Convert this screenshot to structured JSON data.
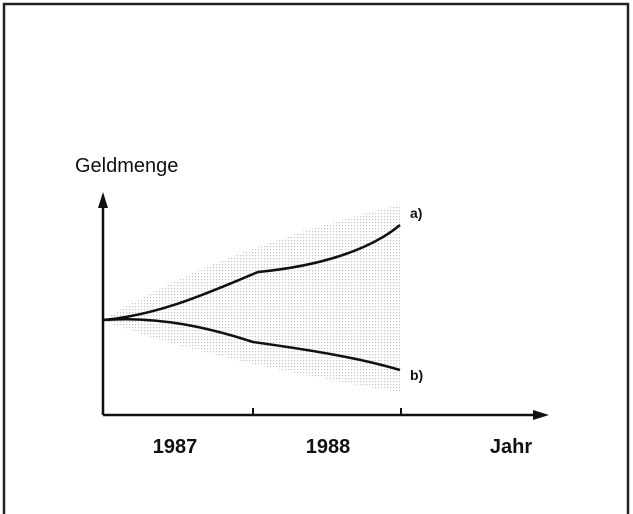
{
  "y_axis_label": "Geldmenge",
  "curves": [
    {
      "label": "a)"
    },
    {
      "label": "b)"
    }
  ],
  "x_labels": [
    "1987",
    "1988"
  ],
  "x_axis_label": "Jahr"
}
